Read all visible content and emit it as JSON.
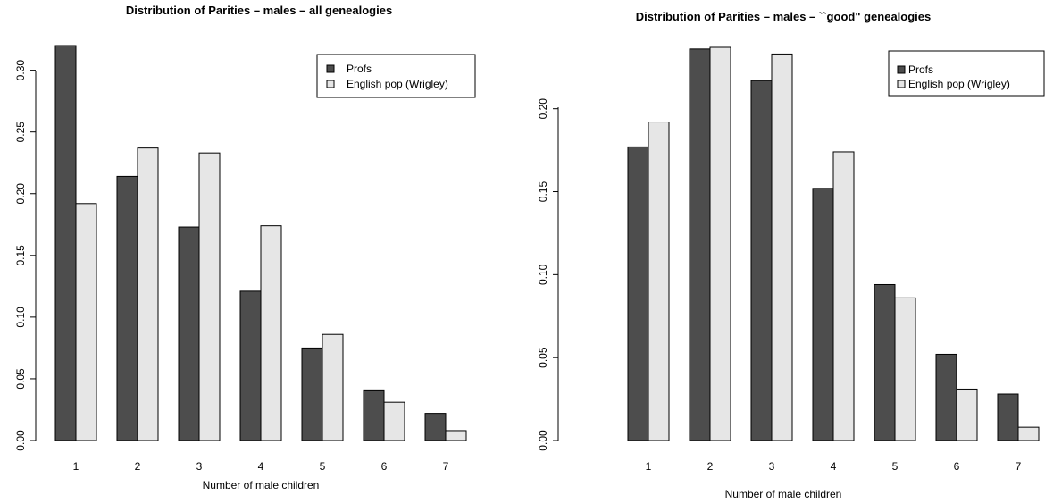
{
  "chart_data": [
    {
      "type": "bar",
      "title": "Distribution of Parities – males – all genealogies",
      "xlabel": "Number of male children",
      "ylabel": "",
      "categories": [
        "1",
        "2",
        "3",
        "4",
        "5",
        "6",
        "7"
      ],
      "series": [
        {
          "name": "Profs",
          "color": "#4d4d4d",
          "values": [
            0.32,
            0.214,
            0.173,
            0.121,
            0.075,
            0.041,
            0.022
          ]
        },
        {
          "name": "English pop (Wrigley)",
          "color": "#e6e6e6",
          "values": [
            0.192,
            0.237,
            0.233,
            0.174,
            0.086,
            0.031,
            0.008
          ]
        }
      ],
      "ylim": [
        0,
        0.32
      ],
      "yticks": [
        "0.00",
        "0.05",
        "0.10",
        "0.15",
        "0.20",
        "0.25",
        "0.30"
      ],
      "legend": "top-right",
      "grid": false
    },
    {
      "type": "bar",
      "title": "Distribution of Parities – males – ``good\" genealogies",
      "xlabel": "Number of male children",
      "ylabel": "",
      "categories": [
        "1",
        "2",
        "3",
        "4",
        "5",
        "6",
        "7"
      ],
      "series": [
        {
          "name": "Profs",
          "color": "#4d4d4d",
          "values": [
            0.177,
            0.236,
            0.217,
            0.152,
            0.094,
            0.052,
            0.028
          ]
        },
        {
          "name": "English pop (Wrigley)",
          "color": "#e6e6e6",
          "values": [
            0.192,
            0.237,
            0.233,
            0.174,
            0.086,
            0.031,
            0.008
          ]
        }
      ],
      "ylim": [
        0,
        0.237
      ],
      "yticks": [
        "0.00",
        "0.05",
        "0.10",
        "0.15",
        "0.20"
      ],
      "legend": "top-right",
      "grid": false
    }
  ]
}
